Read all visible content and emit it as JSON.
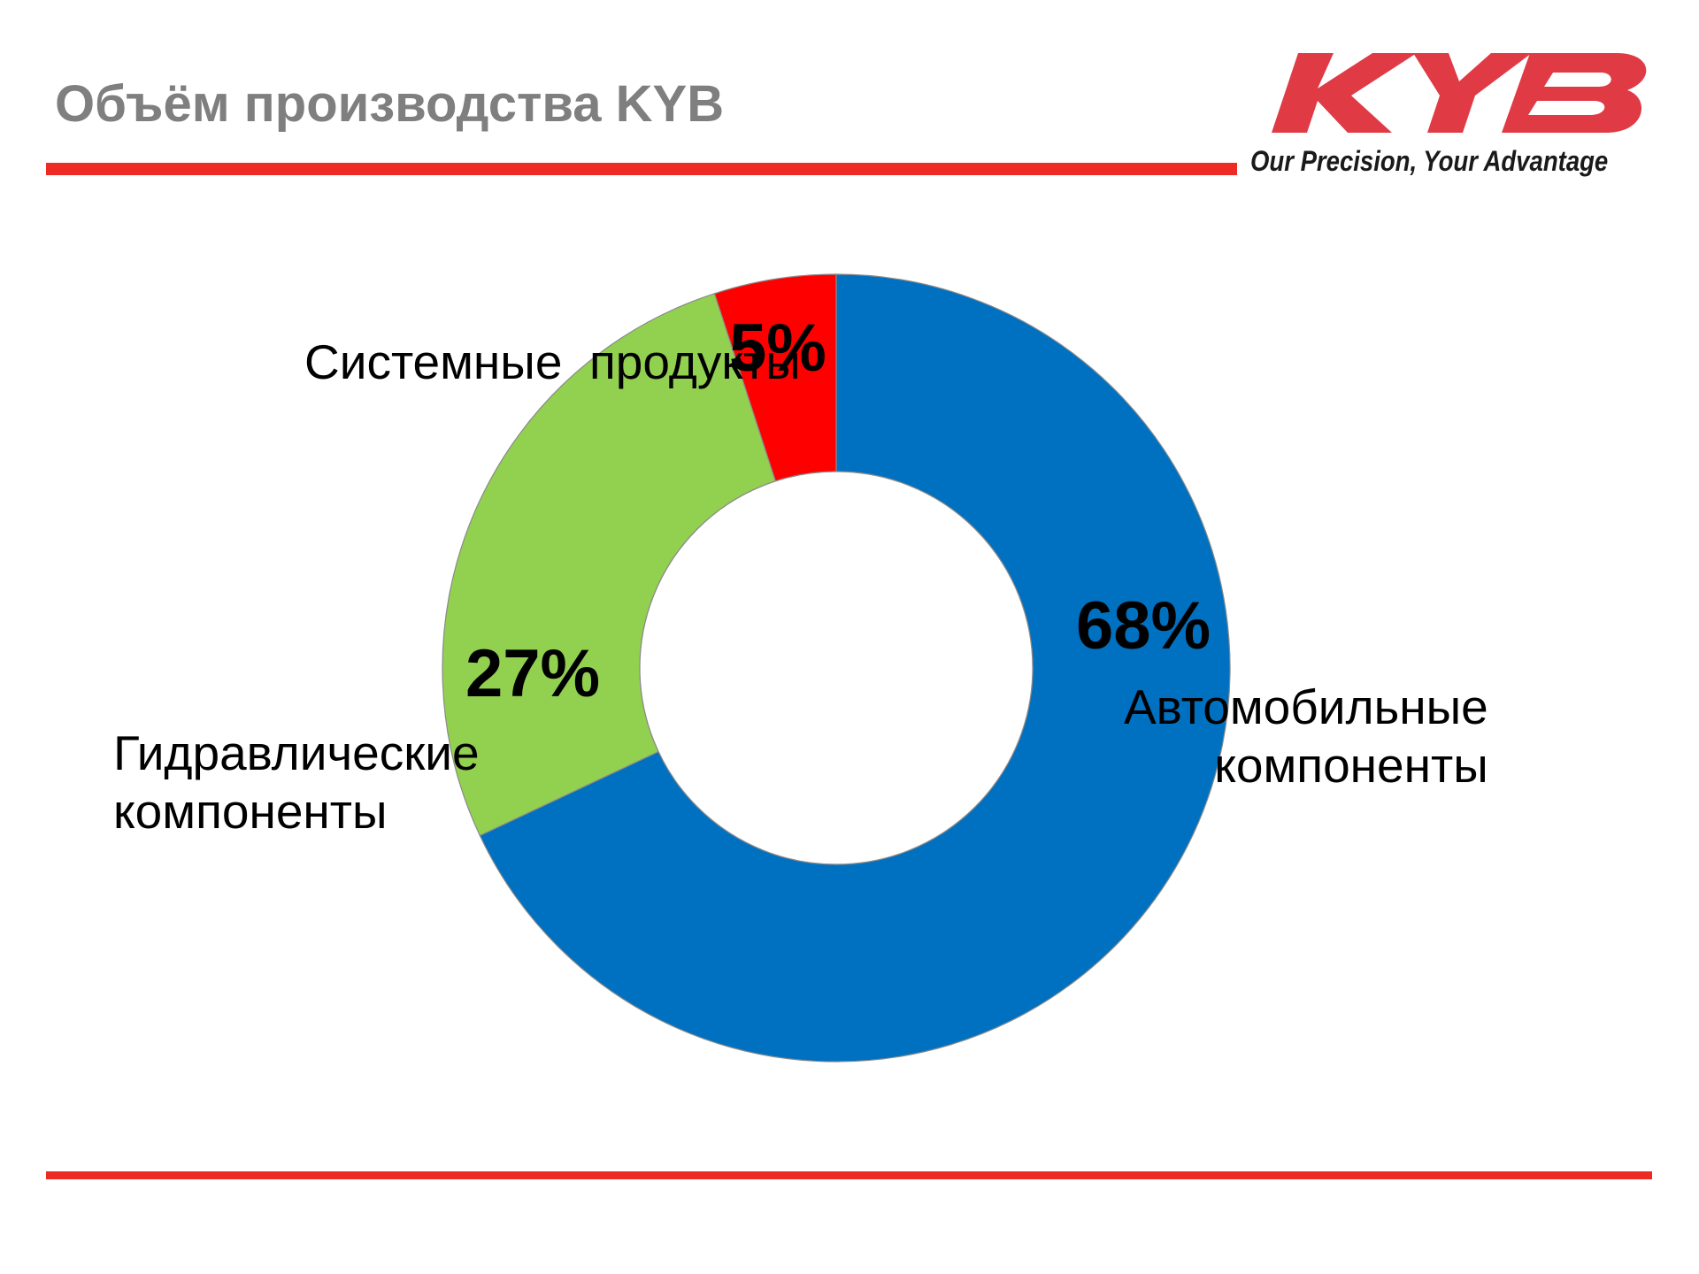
{
  "header": {
    "title": "Объём производства KYB",
    "logo_text": "KYB",
    "tagline": "Our Precision, Your Advantage",
    "accent_color": "#ee2a24"
  },
  "chart_data": {
    "type": "pie",
    "donut": true,
    "categories": [
      "Автомобильные компоненты",
      "Гидравлические компоненты",
      "Системные продукты"
    ],
    "values": [
      68,
      27,
      5
    ],
    "value_labels": [
      "68%",
      "27%",
      "5%"
    ],
    "colors": [
      "#0070c0",
      "#92d050",
      "#ff0000"
    ],
    "label_lines": [
      [
        "Автомобильные",
        "компоненты"
      ],
      [
        "Гидравлические",
        "компоненты"
      ],
      [
        "Системные  продукты"
      ]
    ],
    "start_angle": "12 o'clock",
    "direction": "clockwise",
    "legend": "none",
    "title": ""
  }
}
